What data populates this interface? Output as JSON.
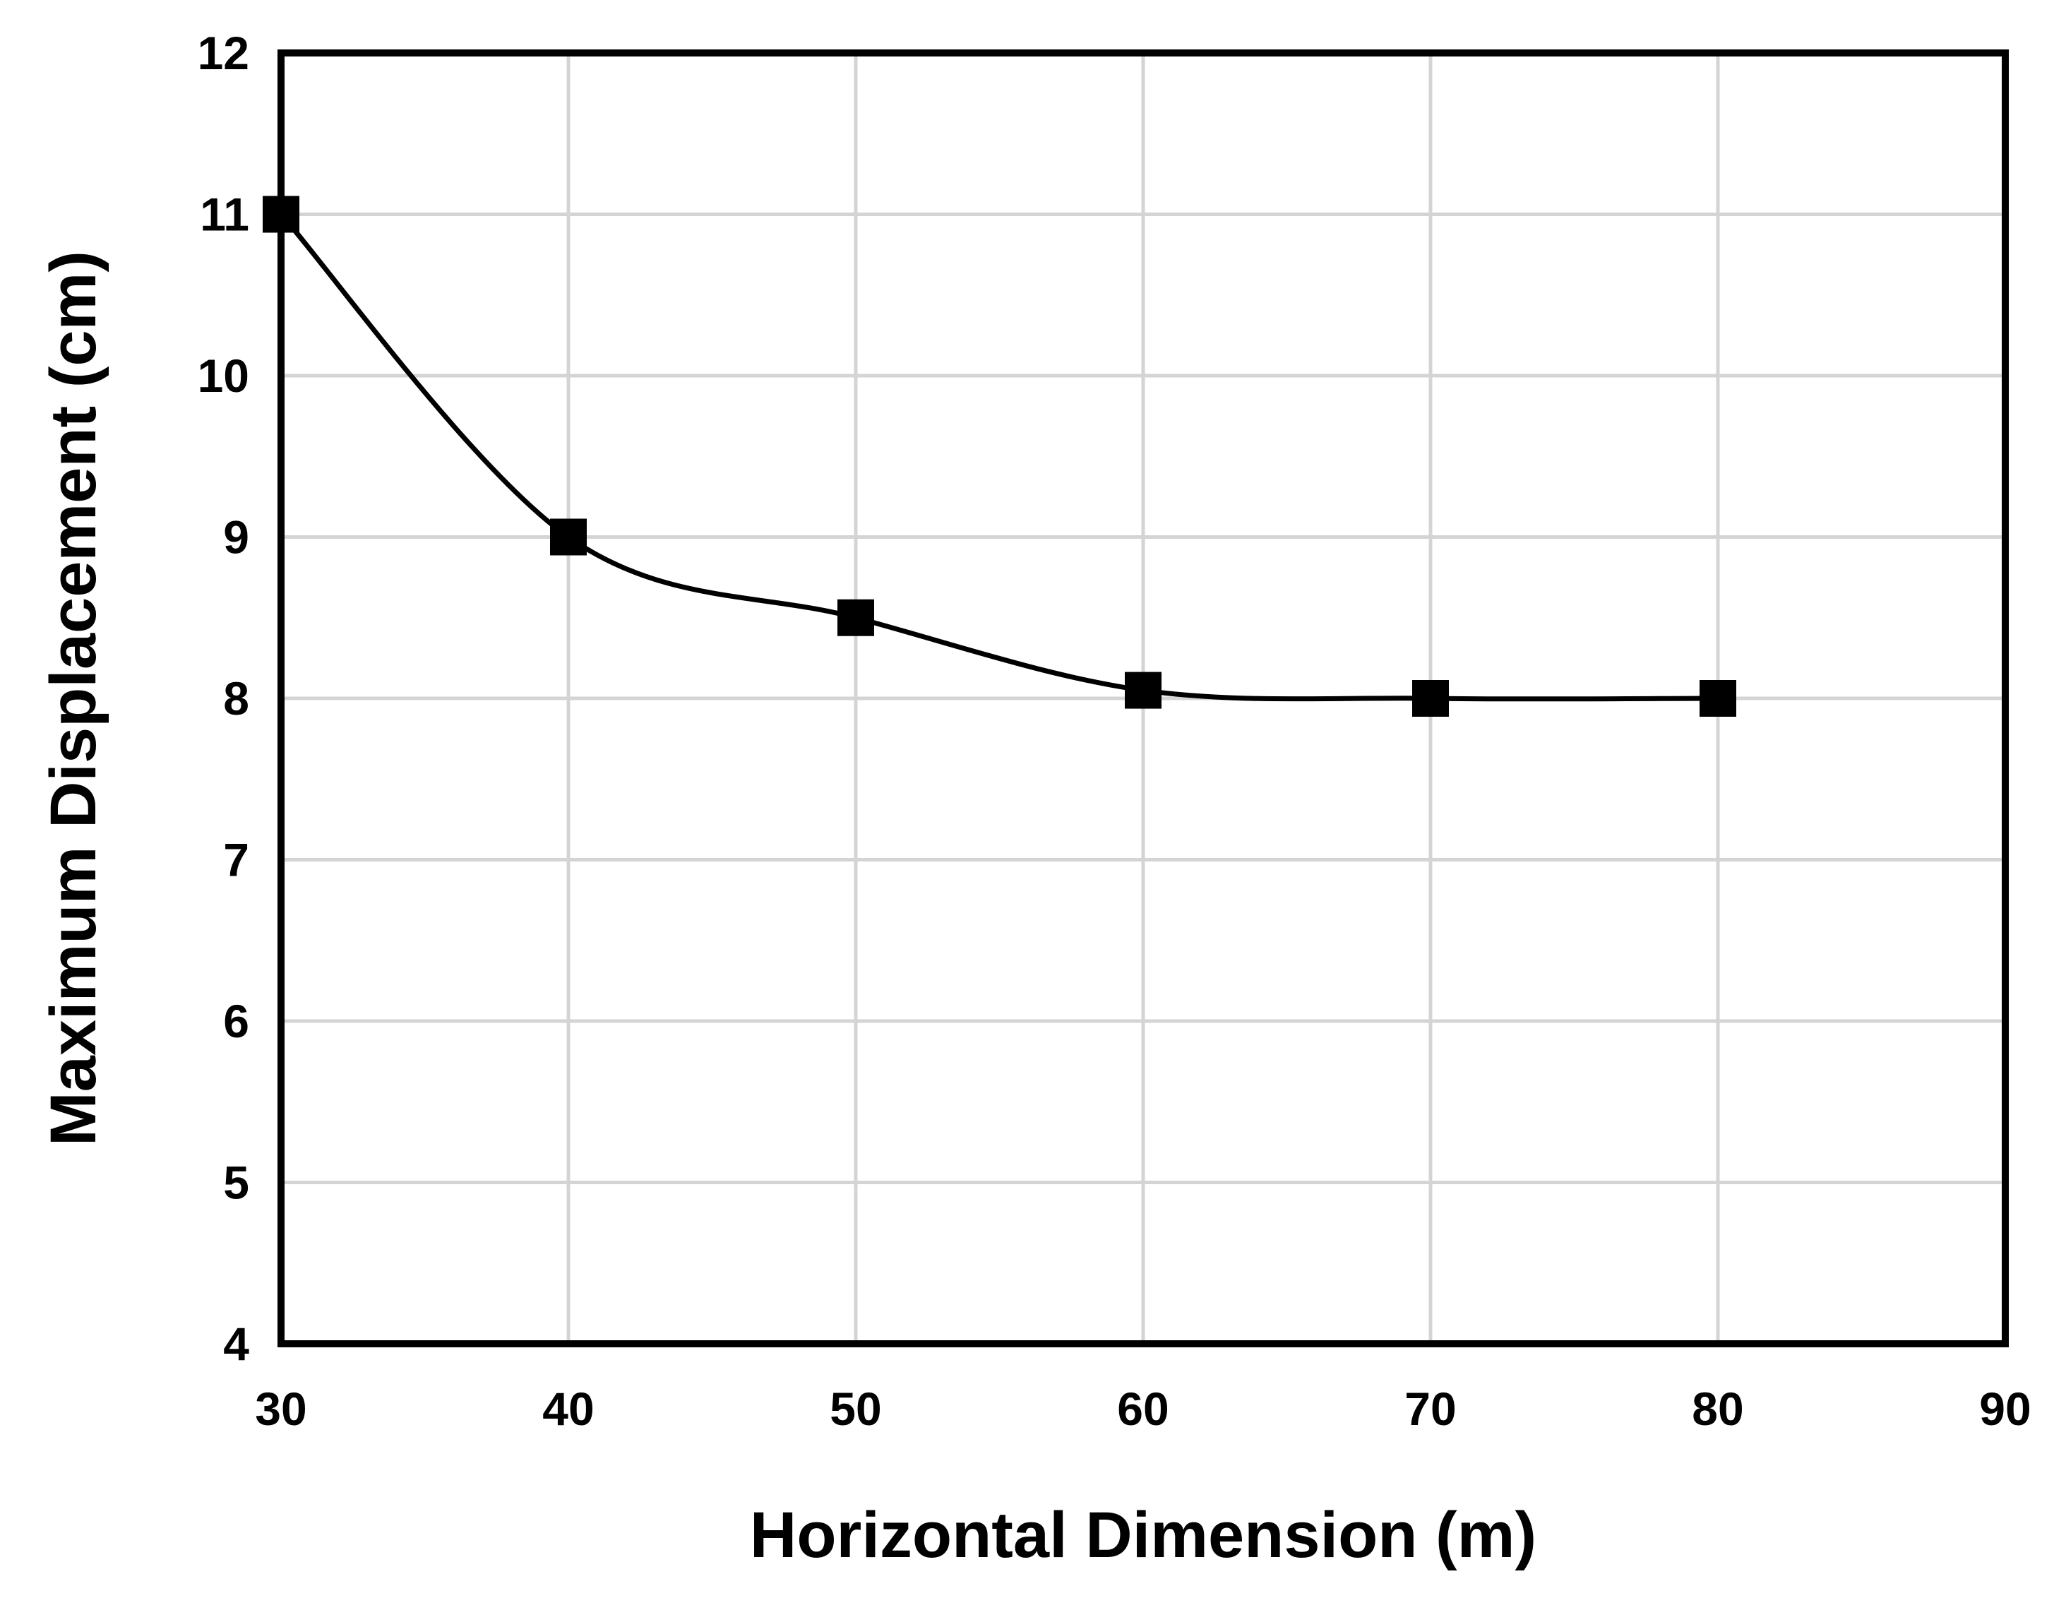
{
  "chart_data": {
    "type": "line",
    "title": "",
    "xlabel": "Horizontal Dimension (m)",
    "ylabel": "Maximum Displacement (cm)",
    "xlim": [
      30,
      90
    ],
    "ylim": [
      4,
      12
    ],
    "xticks": [
      30,
      40,
      50,
      60,
      70,
      80,
      90
    ],
    "yticks": [
      4,
      5,
      6,
      7,
      8,
      9,
      10,
      11,
      12
    ],
    "grid": true,
    "legend": "none",
    "smooth": true,
    "series": [
      {
        "marker": "square",
        "color": "#000000",
        "points": [
          {
            "x": 30,
            "y": 11.0
          },
          {
            "x": 40,
            "y": 9.0
          },
          {
            "x": 50,
            "y": 8.5
          },
          {
            "x": 60,
            "y": 8.05
          },
          {
            "x": 70,
            "y": 8.0
          },
          {
            "x": 80,
            "y": 8.0
          }
        ]
      }
    ]
  }
}
